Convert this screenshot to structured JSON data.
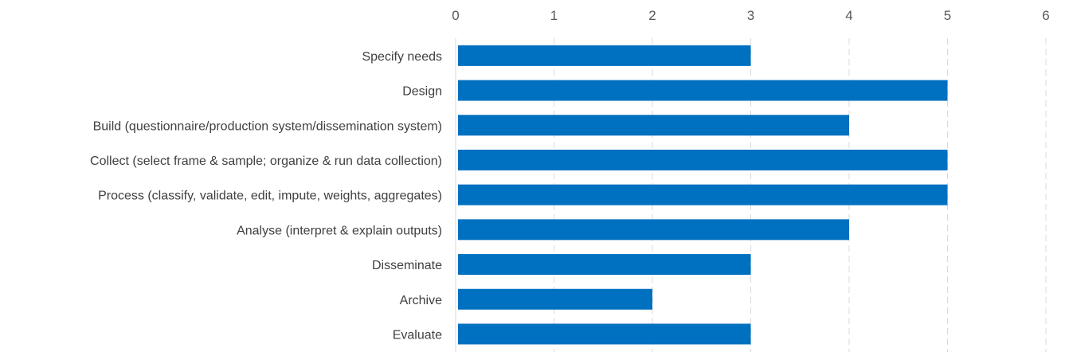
{
  "chart_data": {
    "type": "bar",
    "orientation": "horizontal",
    "title": "",
    "xlabel": "",
    "ylabel": "",
    "xlim": [
      0,
      6
    ],
    "x_ticks": [
      "0",
      "1",
      "2",
      "3",
      "4",
      "5",
      "6"
    ],
    "x_axis_position": "top",
    "grid": true,
    "legend": "none",
    "bar_color": "#0070C0",
    "categories": [
      "Specify needs",
      "Design",
      "Build (questionnaire/production system/dissemination system)",
      "Collect (select frame & sample; organize & run data collection)",
      "Process (classify, validate, edit, impute, weights, aggregates)",
      "Analyse (interpret & explain outputs)",
      "Disseminate",
      "Archive",
      "Evaluate"
    ],
    "values": [
      3,
      5,
      4,
      5,
      5,
      4,
      3,
      2,
      3
    ]
  }
}
